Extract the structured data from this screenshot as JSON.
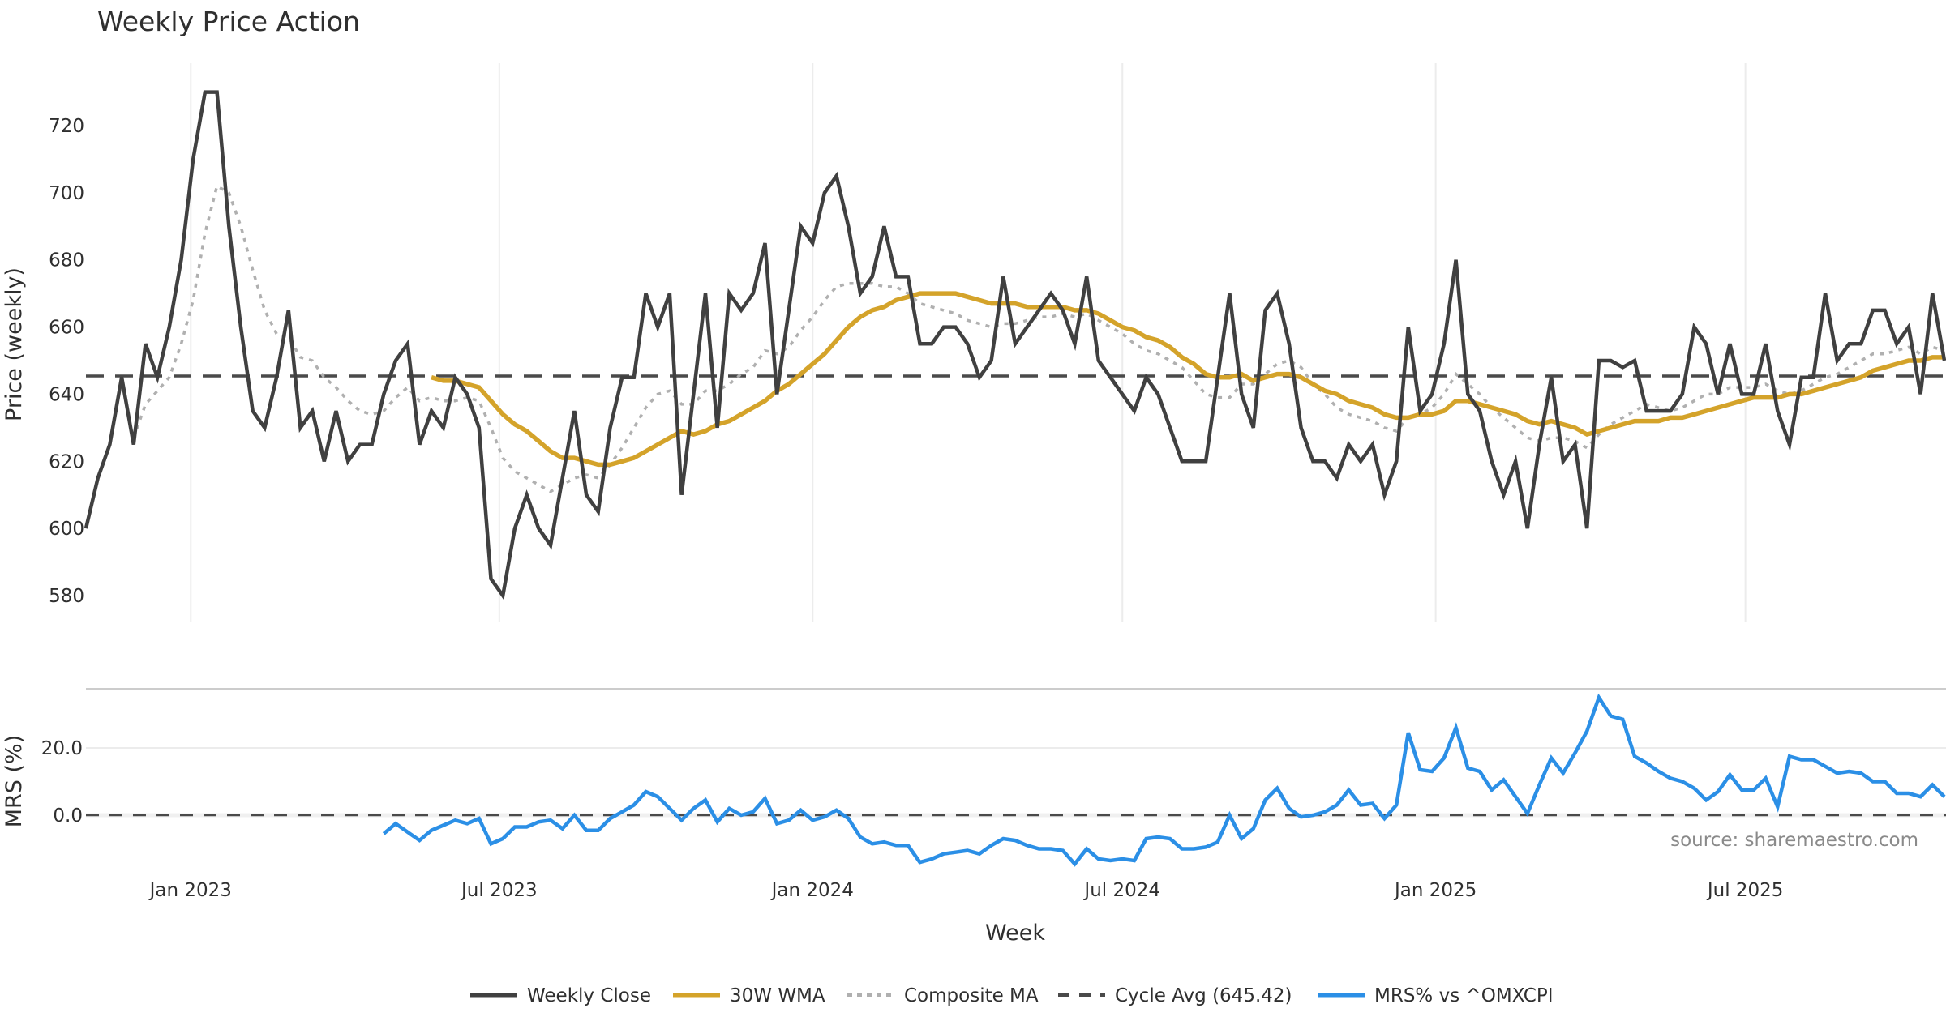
{
  "chart_data": {
    "type": "line",
    "title": "Weekly Price Action",
    "xlabel": "Week",
    "source": "source: sharemaestro.com",
    "colors": {
      "weekly_close": "#404040",
      "wma": "#d4a32a",
      "composite": "#b0b0b0",
      "cycle_avg": "#4a4a4a",
      "mrs": "#2b8fe6",
      "grid": "#ececec",
      "separator": "#cccccc"
    },
    "x_range_weeks": [
      0,
      156
    ],
    "x_ticks": [
      {
        "week": 8.8,
        "label": "Jan 2023"
      },
      {
        "week": 34.7,
        "label": "Jul 2023"
      },
      {
        "week": 61.0,
        "label": "Jan 2024"
      },
      {
        "week": 87.0,
        "label": "Jul 2024"
      },
      {
        "week": 113.3,
        "label": "Jan 2025"
      },
      {
        "week": 139.3,
        "label": "Jul 2025"
      }
    ],
    "price_panel": {
      "ylabel": "Price (weekly)",
      "ylim": [
        572,
        738
      ],
      "y_ticks": [
        {
          "value": 580,
          "label": "580"
        },
        {
          "value": 600,
          "label": "600"
        },
        {
          "value": 620,
          "label": "620"
        },
        {
          "value": 640,
          "label": "640"
        },
        {
          "value": 660,
          "label": "660"
        },
        {
          "value": 680,
          "label": "680"
        },
        {
          "value": 700,
          "label": "700"
        },
        {
          "value": 720,
          "label": "720"
        }
      ],
      "cycle_avg": 645.42,
      "series": [
        {
          "name": "Weekly Close",
          "key": "weekly_close",
          "start_week": 0,
          "values": [
            600,
            615,
            625,
            645,
            625,
            655,
            645,
            660,
            680,
            710,
            730,
            730,
            690,
            660,
            635,
            630,
            645,
            665,
            630,
            635,
            620,
            635,
            620,
            625,
            625,
            640,
            650,
            655,
            625,
            635,
            630,
            645,
            640,
            630,
            585,
            580,
            600,
            610,
            600,
            595,
            615,
            635,
            610,
            605,
            630,
            645,
            645,
            670,
            660,
            670,
            610,
            640,
            670,
            630,
            670,
            665,
            670,
            685,
            640,
            665,
            690,
            685,
            700,
            705,
            690,
            670,
            675,
            690,
            675,
            675,
            655,
            655,
            660,
            660,
            655,
            645,
            650,
            675,
            655,
            660,
            665,
            670,
            665,
            655,
            675,
            650,
            645,
            640,
            635,
            645,
            640,
            630,
            620,
            620,
            620,
            645,
            670,
            640,
            630,
            665,
            670,
            655,
            630,
            620,
            620,
            615,
            625,
            620,
            625,
            610,
            620,
            660,
            635,
            640,
            655,
            680,
            640,
            635,
            620,
            610,
            620,
            600,
            625,
            645,
            620,
            625,
            600,
            650,
            650,
            648,
            650,
            635,
            635,
            635,
            640,
            660,
            655,
            640,
            655,
            640,
            640,
            655,
            635,
            625,
            645,
            645,
            670,
            650,
            655,
            655,
            665,
            665,
            655,
            660,
            640,
            670,
            650
          ]
        },
        {
          "name": "30W WMA",
          "key": "wma",
          "start_week": 29,
          "values": [
            645,
            644,
            644,
            643,
            642,
            638,
            634,
            631,
            629,
            626,
            623,
            621,
            621,
            620,
            619,
            619,
            620,
            621,
            623,
            625,
            627,
            629,
            628,
            629,
            631,
            632,
            634,
            636,
            638,
            641,
            643,
            646,
            649,
            652,
            656,
            660,
            663,
            665,
            666,
            668,
            669,
            670,
            670,
            670,
            670,
            669,
            668,
            667,
            667,
            667,
            666,
            666,
            666,
            666,
            665,
            665,
            664,
            662,
            660,
            659,
            657,
            656,
            654,
            651,
            649,
            646,
            645,
            645,
            646,
            644,
            645,
            646,
            646,
            645,
            643,
            641,
            640,
            638,
            637,
            636,
            634,
            633,
            633,
            634,
            634,
            635,
            638,
            638,
            637,
            636,
            635,
            634,
            632,
            631,
            632,
            631,
            630,
            628,
            629,
            630,
            631,
            632,
            632,
            632,
            633,
            633,
            634,
            635,
            636,
            637,
            638,
            639,
            639,
            639,
            640,
            640,
            641,
            642,
            643,
            644,
            645,
            647,
            648,
            649,
            650,
            650,
            651,
            651
          ]
        },
        {
          "name": "Composite MA",
          "key": "composite",
          "start_week": 4,
          "values": [
            627,
            637,
            641,
            645,
            655,
            668,
            688,
            702,
            700,
            690,
            677,
            665,
            658,
            657,
            651,
            650,
            645,
            642,
            638,
            635,
            634,
            635,
            639,
            642,
            638,
            639,
            638,
            638,
            639,
            638,
            630,
            621,
            617,
            615,
            613,
            611,
            613,
            615,
            616,
            615,
            619,
            624,
            630,
            636,
            640,
            641,
            637,
            637,
            641,
            641,
            643,
            646,
            648,
            653,
            652,
            654,
            659,
            663,
            668,
            672,
            673,
            673,
            673,
            672,
            672,
            670,
            667,
            666,
            665,
            664,
            662,
            661,
            660,
            661,
            661,
            662,
            663,
            663,
            664,
            663,
            664,
            662,
            660,
            658,
            655,
            653,
            652,
            650,
            648,
            644,
            640,
            639,
            639,
            643,
            643,
            646,
            649,
            650,
            648,
            643,
            640,
            636,
            634,
            633,
            632,
            630,
            629,
            633,
            634,
            636,
            640,
            646,
            643,
            640,
            636,
            633,
            630,
            627,
            626,
            627,
            627,
            626,
            624,
            628,
            631,
            633,
            635,
            637,
            636,
            635,
            636,
            638,
            640,
            640,
            642,
            642,
            642,
            643,
            641,
            640,
            641,
            643,
            645,
            646,
            648,
            650,
            652,
            652,
            653,
            654,
            652,
            654,
            653
          ]
        }
      ]
    },
    "mrs_panel": {
      "ylabel": "MRS (%)",
      "y_ticks": [
        {
          "value": 0,
          "label": "0.0"
        },
        {
          "value": 20,
          "label": "20.0"
        }
      ],
      "series": {
        "name": "MRS% vs ^OMXCPI",
        "key": "mrs",
        "start_week": 25,
        "values": [
          -5.5,
          -2.5,
          -5,
          -7.5,
          -4.5,
          -3,
          -1.5,
          -2.5,
          -1,
          -8.5,
          -7,
          -3.5,
          -3.5,
          -2,
          -1.5,
          -4,
          0,
          -4.5,
          -4.5,
          -1,
          1,
          3,
          7,
          5.5,
          2,
          -1.5,
          2,
          4.5,
          -2,
          2,
          0,
          1,
          5,
          -2.5,
          -1.5,
          1.5,
          -1.5,
          -0.5,
          1.5,
          -1,
          -6.5,
          -8.5,
          -8,
          -9,
          -9,
          -14,
          -13,
          -11.5,
          -11,
          -10.5,
          -11.5,
          -9,
          -7,
          -7.5,
          -9,
          -10,
          -10,
          -10.5,
          -14.5,
          -10,
          -13,
          -13.5,
          -13,
          -13.5,
          -7,
          -6.5,
          -7,
          -10,
          -10,
          -9.5,
          -8,
          0,
          -7,
          -4,
          4.5,
          8,
          2,
          -0.5,
          0,
          1,
          3,
          7.5,
          3,
          3.5,
          -1,
          3,
          24.5,
          13.5,
          13,
          17,
          26,
          14,
          13,
          7.5,
          10.5,
          5.5,
          0.5,
          9,
          17,
          12.5,
          18.5,
          25,
          35,
          29.5,
          28.5,
          17.5,
          15.5,
          13,
          11,
          10,
          8,
          4.5,
          7,
          12,
          7.5,
          7.5,
          11,
          2.5,
          17.5,
          16.5,
          16.5,
          14.5,
          12.5,
          13,
          12.5,
          10,
          10,
          6.5,
          6.5,
          5.5,
          9,
          5.5
        ]
      }
    },
    "legend": {
      "placement": "bottom-center",
      "items": [
        {
          "label": "Weekly Close",
          "key": "weekly_close",
          "style": "solid"
        },
        {
          "label": "30W WMA",
          "key": "wma",
          "style": "solid"
        },
        {
          "label": "Composite MA",
          "key": "composite",
          "style": "dotted"
        },
        {
          "label": "Cycle Avg (645.42)",
          "key": "cycle_avg",
          "style": "dashed"
        },
        {
          "label": "MRS% vs ^OMXCPI",
          "key": "mrs",
          "style": "solid"
        }
      ]
    }
  }
}
